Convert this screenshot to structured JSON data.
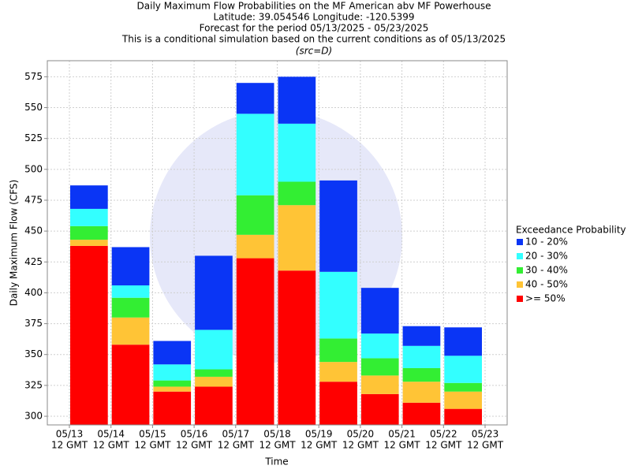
{
  "chart_data": {
    "type": "bar",
    "title": [
      "Daily Maximum Flow Probabilities on the MF American abv MF Powerhouse",
      "Latitude: 39.054546 Longitude: -120.5399",
      "Forecast for the period 05/13/2025 - 05/23/2025",
      "This is a conditional simulation based on the current conditions as of 05/13/2025"
    ],
    "subtitle": "(src=D)",
    "x_label": "Time",
    "y_label": "Daily Maximum Flow (CFS)",
    "legend_title": "Exceedance Probability",
    "xticks": [
      {
        "date": "05/13",
        "time": "12 GMT"
      },
      {
        "date": "05/14",
        "time": "12 GMT"
      },
      {
        "date": "05/15",
        "time": "12 GMT"
      },
      {
        "date": "05/16",
        "time": "12 GMT"
      },
      {
        "date": "05/17",
        "time": "12 GMT"
      },
      {
        "date": "05/18",
        "time": "12 GMT"
      },
      {
        "date": "05/19",
        "time": "12 GMT"
      },
      {
        "date": "05/20",
        "time": "12 GMT"
      },
      {
        "date": "05/21",
        "time": "12 GMT"
      },
      {
        "date": "05/22",
        "time": "12 GMT"
      },
      {
        "date": "05/23",
        "time": "12 GMT"
      }
    ],
    "series": [
      {
        "name": "10 - 20%",
        "color": "#0a35f5",
        "values": [
          487,
          437,
          361,
          430,
          570,
          575,
          491,
          404,
          373,
          372
        ]
      },
      {
        "name": "20 - 30%",
        "color": "#33ffff",
        "values": [
          468,
          406,
          342,
          370,
          545,
          537,
          417,
          367,
          357,
          349
        ]
      },
      {
        "name": "30 - 40%",
        "color": "#33ee33",
        "values": [
          454,
          396,
          329,
          338,
          479,
          490,
          363,
          347,
          339,
          327
        ]
      },
      {
        "name": "40 - 50%",
        "color": "#ffc436",
        "values": [
          443,
          380,
          324,
          332,
          447,
          471,
          344,
          333,
          328,
          320
        ]
      },
      {
        "name": ">= 50%",
        "color": "#ff0000",
        "values": [
          438,
          358,
          320,
          324,
          428,
          418,
          328,
          318,
          311,
          306
        ]
      }
    ],
    "ylim": [
      293,
      588
    ],
    "yticks": [
      300,
      325,
      350,
      375,
      400,
      425,
      450,
      475,
      500,
      525,
      550,
      575
    ],
    "grid": true
  }
}
